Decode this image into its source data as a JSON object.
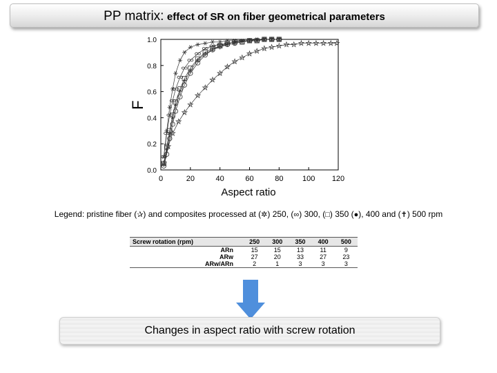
{
  "header": {
    "title_main": "PP matrix:",
    "title_sub": "effect of SR on fiber geometrical parameters"
  },
  "legend_text": {
    "prefix": "Legend: pristine fiber (",
    "s1": "✰",
    "mid1": ") and composites processed at (",
    "s2": "✲",
    "mid2": ") 250, (",
    "s3": "∞",
    "mid3": ") 300, (",
    "s4": "□",
    "mid4": ") 350 (",
    "s5": "●",
    "mid5": "), 400 and (",
    "s6": "✝",
    "suffix": ") 500 rpm"
  },
  "table": {
    "headers": [
      "Screw rotation (rpm)",
      "250",
      "300",
      "350",
      "400",
      "500"
    ],
    "rows": [
      [
        "ARn",
        "15",
        "15",
        "13",
        "11",
        "9"
      ],
      [
        "ARw",
        "27",
        "20",
        "33",
        "27",
        "23"
      ],
      [
        "ARw/ARn",
        "2",
        "1",
        "3",
        "3",
        "3"
      ]
    ]
  },
  "banner_text": "Changes in aspect ratio with screw rotation",
  "colors": {
    "accent_arrow": "#4f8fdc",
    "curve": "#333333"
  },
  "chart_data": {
    "type": "line",
    "xlabel": "Aspect ratio",
    "ylabel": "F",
    "xlim": [
      0,
      120
    ],
    "ylim": [
      0,
      1.0
    ],
    "x_ticks": [
      "0",
      "20",
      "40",
      "60",
      "80",
      "100",
      "120"
    ],
    "y_ticks": [
      "0.0",
      "0.2",
      "0.4",
      "0.6",
      "0.8",
      "1.0"
    ],
    "grid": false,
    "series": [
      {
        "marker": "star-outline",
        "x": [
          2,
          5,
          8,
          12,
          16,
          20,
          25,
          30,
          35,
          40,
          45,
          50,
          55,
          60,
          65,
          70,
          75,
          80,
          85,
          90,
          95,
          100,
          105,
          110,
          115,
          119
        ],
        "y": [
          0.05,
          0.18,
          0.28,
          0.37,
          0.44,
          0.5,
          0.57,
          0.63,
          0.69,
          0.74,
          0.79,
          0.83,
          0.86,
          0.89,
          0.91,
          0.93,
          0.94,
          0.95,
          0.96,
          0.96,
          0.97,
          0.97,
          0.97,
          0.97,
          0.97,
          0.97
        ]
      },
      {
        "marker": "asterisk",
        "x": [
          2,
          4,
          6,
          8,
          10,
          13,
          16,
          20,
          25,
          30,
          35,
          40,
          45,
          50,
          55,
          60,
          65,
          70,
          75,
          80
        ],
        "y": [
          0.1,
          0.3,
          0.48,
          0.62,
          0.74,
          0.84,
          0.9,
          0.94,
          0.96,
          0.97,
          0.98,
          0.98,
          0.99,
          0.99,
          0.99,
          0.99,
          1.0,
          1.0,
          1.0,
          1.0
        ]
      },
      {
        "marker": "infinity",
        "x": [
          2,
          4,
          6,
          8,
          10,
          13,
          16,
          20,
          25,
          30,
          35,
          40,
          45,
          50,
          55,
          60,
          65,
          70,
          75,
          80
        ],
        "y": [
          0.1,
          0.28,
          0.42,
          0.53,
          0.62,
          0.71,
          0.78,
          0.84,
          0.89,
          0.93,
          0.95,
          0.96,
          0.97,
          0.98,
          0.99,
          0.99,
          0.99,
          1.0,
          1.0,
          1.0
        ]
      },
      {
        "marker": "square",
        "x": [
          2,
          4,
          6,
          8,
          10,
          13,
          16,
          20,
          25,
          30,
          35,
          40,
          45,
          50,
          55,
          60,
          65,
          70,
          75,
          80
        ],
        "y": [
          0.05,
          0.18,
          0.3,
          0.42,
          0.52,
          0.62,
          0.7,
          0.78,
          0.85,
          0.9,
          0.93,
          0.95,
          0.97,
          0.98,
          0.98,
          0.99,
          0.99,
          1.0,
          1.0,
          1.0
        ]
      },
      {
        "marker": "circle",
        "x": [
          2,
          4,
          6,
          8,
          10,
          13,
          16,
          20,
          25,
          30,
          35,
          40,
          45,
          50,
          55,
          60,
          65,
          70,
          75,
          80
        ],
        "y": [
          0.03,
          0.12,
          0.24,
          0.35,
          0.45,
          0.56,
          0.65,
          0.74,
          0.82,
          0.88,
          0.92,
          0.95,
          0.96,
          0.97,
          0.98,
          0.99,
          0.99,
          1.0,
          1.0,
          1.0
        ]
      },
      {
        "marker": "cross",
        "x": [
          2,
          4,
          6,
          8,
          10,
          13,
          16,
          20,
          25,
          30,
          35,
          40,
          45,
          50,
          55,
          60,
          65,
          70,
          75,
          80
        ],
        "y": [
          0.04,
          0.15,
          0.27,
          0.39,
          0.49,
          0.6,
          0.68,
          0.76,
          0.84,
          0.89,
          0.92,
          0.94,
          0.96,
          0.97,
          0.98,
          0.99,
          0.99,
          1.0,
          1.0,
          1.0
        ]
      }
    ]
  }
}
